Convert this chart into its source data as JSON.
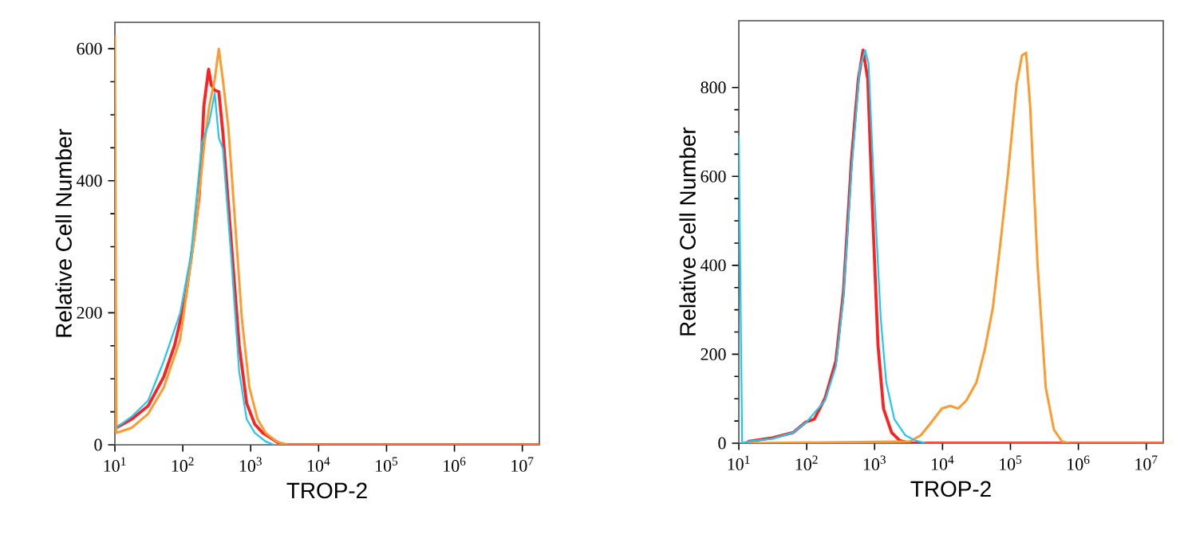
{
  "chart_data": [
    {
      "type": "line",
      "xlabel": "TROP-2",
      "ylabel": "Relative Cell Number",
      "log": "x",
      "xlim": [
        10,
        17800000
      ],
      "ylim": [
        0,
        640
      ],
      "xticks": [
        {
          "value": 10,
          "label": "10$^{1}$"
        },
        {
          "value": 100,
          "label": "10$^{2}$"
        },
        {
          "value": 1000,
          "label": "10$^{3}$"
        },
        {
          "value": 10000,
          "label": "10$^{4}$"
        },
        {
          "value": 100000,
          "label": "10$^{5}$"
        },
        {
          "value": 1000000,
          "label": "10$^{6}$"
        },
        {
          "value": 10000000,
          "label": "10$^{7}$"
        }
      ],
      "yticks": [
        0,
        200,
        400,
        600
      ],
      "series": [
        {
          "color": "#ff2020",
          "x": [
            10.5,
            17.8,
            30.9,
            52.5,
            75.9,
            110,
            145,
            174,
            191,
            204,
            240,
            263,
            295,
            339,
            389,
            513,
            676,
            871,
            1150,
            1510,
            2000,
            2630,
            3470,
            17800000
          ],
          "values": [
            26,
            39,
            59,
            103,
            151,
            224,
            312,
            376,
            449,
            513,
            569,
            545,
            537,
            535,
            473,
            312,
            151,
            63,
            31,
            18,
            10,
            2,
            0,
            0
          ]
        },
        {
          "color": "#ff9a2e",
          "x": [
            10,
            10.5,
            17.8,
            30.9,
            52.5,
            91.2,
            120,
            158,
            204,
            245,
            295,
            339,
            389,
            468,
            575,
            741,
            955,
            1260,
            1660,
            2400,
            3470,
            17800000
          ],
          "values": [
            620,
            18,
            26,
            47,
            87,
            159,
            248,
            336,
            449,
            513,
            553,
            600,
            553,
            481,
            352,
            191,
            87,
            39,
            18,
            5,
            0,
            0
          ]
        },
        {
          "color": "#1ec8f0",
          "x": [
            10.5,
            17.8,
            30.9,
            52.5,
            91.2,
            132,
            191,
            245,
            295,
            339,
            389,
            513,
            676,
            871,
            1150,
            1660,
            2190,
            17800000
          ],
          "values": [
            26,
            43,
            67,
            127,
            199,
            288,
            457,
            489,
            533,
            465,
            449,
            288,
            111,
            39,
            18,
            5,
            0,
            0
          ]
        }
      ]
    },
    {
      "type": "line",
      "xlabel": "TROP-2",
      "ylabel": "Relative Cell Number",
      "log": "x",
      "xlim": [
        10,
        17800000
      ],
      "ylim": [
        0,
        950
      ],
      "xticks": [
        {
          "value": 10,
          "label": "10$^{1}$"
        },
        {
          "value": 100,
          "label": "10$^{2}$"
        },
        {
          "value": 1000,
          "label": "10$^{3}$"
        },
        {
          "value": 10000,
          "label": "10$^{4}$"
        },
        {
          "value": 100000,
          "label": "10$^{5}$"
        },
        {
          "value": 1000000,
          "label": "10$^{6}$"
        },
        {
          "value": 10000000,
          "label": "10$^{7}$"
        }
      ],
      "yticks": [
        0,
        200,
        400,
        600,
        800
      ],
      "series": [
        {
          "color": "#ff2020",
          "x": [
            13.5,
            30.9,
            63.1,
            97.7,
            129,
            186,
            269,
            347,
            457,
            575,
            676,
            794,
            933,
            1120,
            1350,
            1780,
            2340,
            3310,
            17800000
          ],
          "values": [
            4,
            12,
            24,
            48,
            54,
            101,
            185,
            340,
            639,
            818,
            884,
            818,
            519,
            221,
            78,
            24,
            6,
            0,
            0
          ]
        },
        {
          "color": "#ff9a2e",
          "x": [
            13.5,
            3310,
            4790,
            6920,
            9770,
            12900,
            17000,
            22400,
            31600,
            41700,
            55000,
            72400,
            93300,
            123000,
            148000,
            170000,
            195000,
            251000,
            331000,
            437000,
            575000,
            741000,
            17800000
          ],
          "values": [
            0,
            4,
            18,
            48,
            78,
            84,
            78,
            96,
            137,
            209,
            304,
            460,
            615,
            806,
            872,
            878,
            758,
            400,
            125,
            30,
            4,
            0,
            0
          ]
        },
        {
          "color": "#1ec8f0",
          "x": [
            10,
            11.2,
            13.5,
            30.9,
            63.1,
            100,
            186,
            269,
            347,
            457,
            603,
            724,
            813,
            977,
            1230,
            1480,
            1950,
            2820,
            3980,
            5750,
            17800000
          ],
          "values": [
            690,
            0,
            4,
            10,
            24,
            48,
            96,
            173,
            328,
            615,
            842,
            884,
            854,
            579,
            281,
            137,
            54,
            18,
            6,
            0,
            0
          ]
        }
      ]
    }
  ]
}
